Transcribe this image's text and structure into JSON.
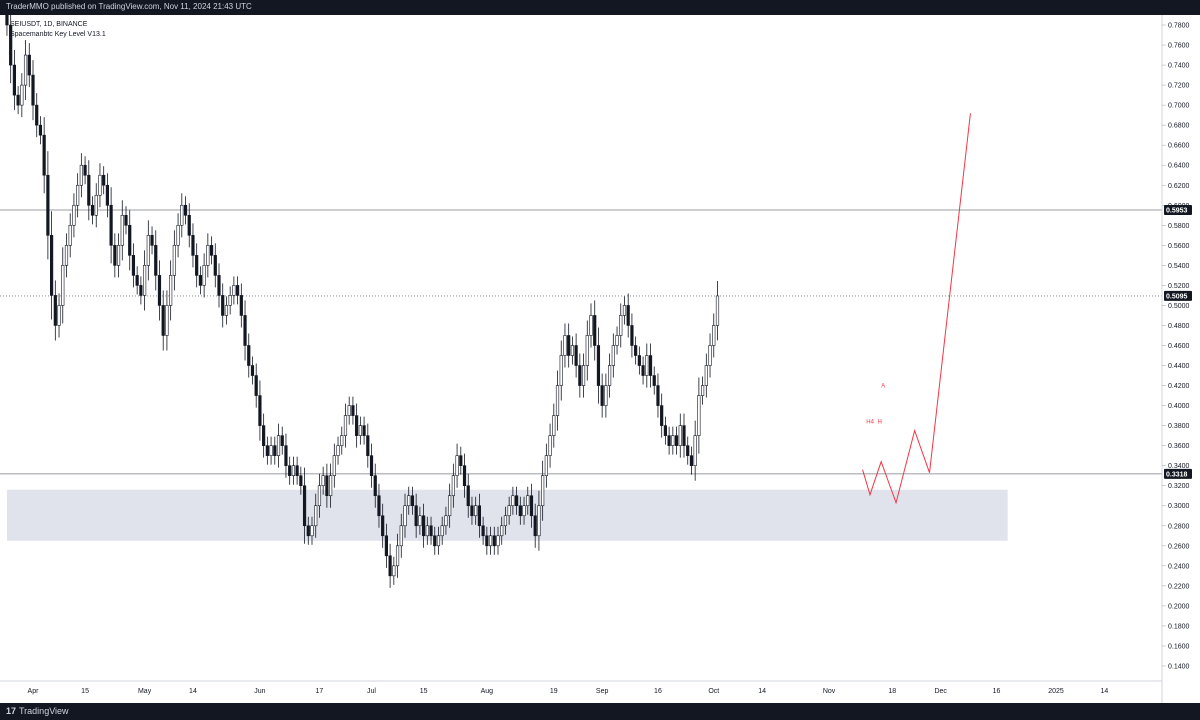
{
  "header": {
    "publisher": "TraderMMO published on TradingView.com, Nov 11, 2024 21:43 UTC"
  },
  "legend": {
    "symbol": "SEIUSDT, 1D, BINANCE",
    "indicator": "Spacemanbtc Key Level V13.1"
  },
  "footer": {
    "brand_mark": "17",
    "brand": "TradingView"
  },
  "colors": {
    "candle": "#131722",
    "projection": "#f23645",
    "zone": "#e0e3eb",
    "level": "#787b86",
    "tag_bg": "#131722"
  },
  "chart_data": {
    "type": "candlestick",
    "ylim": [
      0.125,
      0.79
    ],
    "y_ticks": [
      "0.7800",
      "0.7600",
      "0.7400",
      "0.7200",
      "0.7000",
      "0.6800",
      "0.6600",
      "0.6400",
      "0.6200",
      "0.6000",
      "0.5800",
      "0.5600",
      "0.5400",
      "0.5200",
      "0.5000",
      "0.4800",
      "0.4600",
      "0.4400",
      "0.4200",
      "0.4000",
      "0.3800",
      "0.3600",
      "0.3400",
      "0.3200",
      "0.3000",
      "0.2800",
      "0.2600",
      "0.2400",
      "0.2200",
      "0.2000",
      "0.1800",
      "0.1600",
      "0.1400"
    ],
    "x_ticks": [
      {
        "label": "Apr",
        "day": 0
      },
      {
        "label": "15",
        "day": 14
      },
      {
        "label": "May",
        "day": 30
      },
      {
        "label": "14",
        "day": 43
      },
      {
        "label": "Jun",
        "day": 61
      },
      {
        "label": "17",
        "day": 77
      },
      {
        "label": "Jul",
        "day": 91
      },
      {
        "label": "15",
        "day": 105
      },
      {
        "label": "Aug",
        "day": 122
      },
      {
        "label": "19",
        "day": 140
      },
      {
        "label": "Sep",
        "day": 153
      },
      {
        "label": "16",
        "day": 168
      },
      {
        "label": "Oct",
        "day": 183
      },
      {
        "label": "14",
        "day": 196
      },
      {
        "label": "Nov",
        "day": 214
      },
      {
        "label": "18",
        "day": 231
      },
      {
        "label": "Dec",
        "day": 244
      },
      {
        "label": "16",
        "day": 259
      },
      {
        "label": "2025",
        "day": 275
      },
      {
        "label": "14",
        "day": 288
      }
    ],
    "levels": [
      {
        "price": 0.5953,
        "label": "0.5953",
        "style": "solid"
      },
      {
        "price": 0.5095,
        "label": "0.5095",
        "style": "dotted"
      },
      {
        "price": 0.3318,
        "label": "0.3318",
        "style": "solid"
      }
    ],
    "zone": {
      "from_day": -7,
      "to_day": 262,
      "low": 0.265,
      "high": 0.316
    },
    "projection": [
      {
        "day": 223,
        "price": 0.336
      },
      {
        "day": 225,
        "price": 0.311
      },
      {
        "day": 228,
        "price": 0.344
      },
      {
        "day": 232,
        "price": 0.303
      },
      {
        "day": 237,
        "price": 0.375
      },
      {
        "day": 241,
        "price": 0.333
      },
      {
        "day": 252,
        "price": 0.692
      }
    ],
    "annotations": [
      {
        "text": "H4",
        "day": 224,
        "price": 0.382
      },
      {
        "text": "H",
        "day": 227,
        "price": 0.382
      },
      {
        "text": "A",
        "day": 228,
        "price": 0.418
      }
    ],
    "closes": [
      0.78,
      0.74,
      0.71,
      0.7,
      0.72,
      0.75,
      0.73,
      0.7,
      0.68,
      0.67,
      0.63,
      0.57,
      0.51,
      0.48,
      0.5,
      0.54,
      0.56,
      0.58,
      0.6,
      0.62,
      0.64,
      0.63,
      0.6,
      0.59,
      0.61,
      0.63,
      0.62,
      0.6,
      0.56,
      0.54,
      0.56,
      0.59,
      0.58,
      0.55,
      0.53,
      0.52,
      0.51,
      0.54,
      0.57,
      0.56,
      0.53,
      0.5,
      0.47,
      0.5,
      0.53,
      0.56,
      0.58,
      0.6,
      0.59,
      0.57,
      0.55,
      0.53,
      0.52,
      0.54,
      0.56,
      0.55,
      0.53,
      0.51,
      0.49,
      0.5,
      0.51,
      0.52,
      0.51,
      0.49,
      0.46,
      0.44,
      0.43,
      0.41,
      0.38,
      0.36,
      0.35,
      0.36,
      0.35,
      0.37,
      0.36,
      0.34,
      0.33,
      0.34,
      0.33,
      0.32,
      0.28,
      0.27,
      0.28,
      0.3,
      0.32,
      0.33,
      0.31,
      0.33,
      0.35,
      0.36,
      0.37,
      0.39,
      0.4,
      0.39,
      0.37,
      0.38,
      0.37,
      0.35,
      0.33,
      0.31,
      0.29,
      0.27,
      0.25,
      0.23,
      0.24,
      0.26,
      0.28,
      0.3,
      0.31,
      0.3,
      0.28,
      0.29,
      0.27,
      0.28,
      0.27,
      0.26,
      0.27,
      0.28,
      0.29,
      0.31,
      0.33,
      0.35,
      0.34,
      0.32,
      0.3,
      0.29,
      0.3,
      0.28,
      0.27,
      0.26,
      0.27,
      0.26,
      0.27,
      0.28,
      0.29,
      0.3,
      0.31,
      0.3,
      0.29,
      0.3,
      0.31,
      0.29,
      0.27,
      0.3,
      0.33,
      0.35,
      0.37,
      0.39,
      0.42,
      0.45,
      0.47,
      0.45,
      0.46,
      0.44,
      0.42,
      0.44,
      0.47,
      0.49,
      0.46,
      0.42,
      0.4,
      0.42,
      0.44,
      0.46,
      0.47,
      0.49,
      0.5,
      0.48,
      0.46,
      0.45,
      0.44,
      0.43,
      0.45,
      0.43,
      0.42,
      0.4,
      0.38,
      0.37,
      0.36,
      0.37,
      0.36,
      0.38,
      0.36,
      0.35,
      0.34,
      0.37,
      0.41,
      0.42,
      0.44,
      0.46,
      0.48,
      0.5095
    ],
    "start_day": -7,
    "ohlc_note": ""
  }
}
